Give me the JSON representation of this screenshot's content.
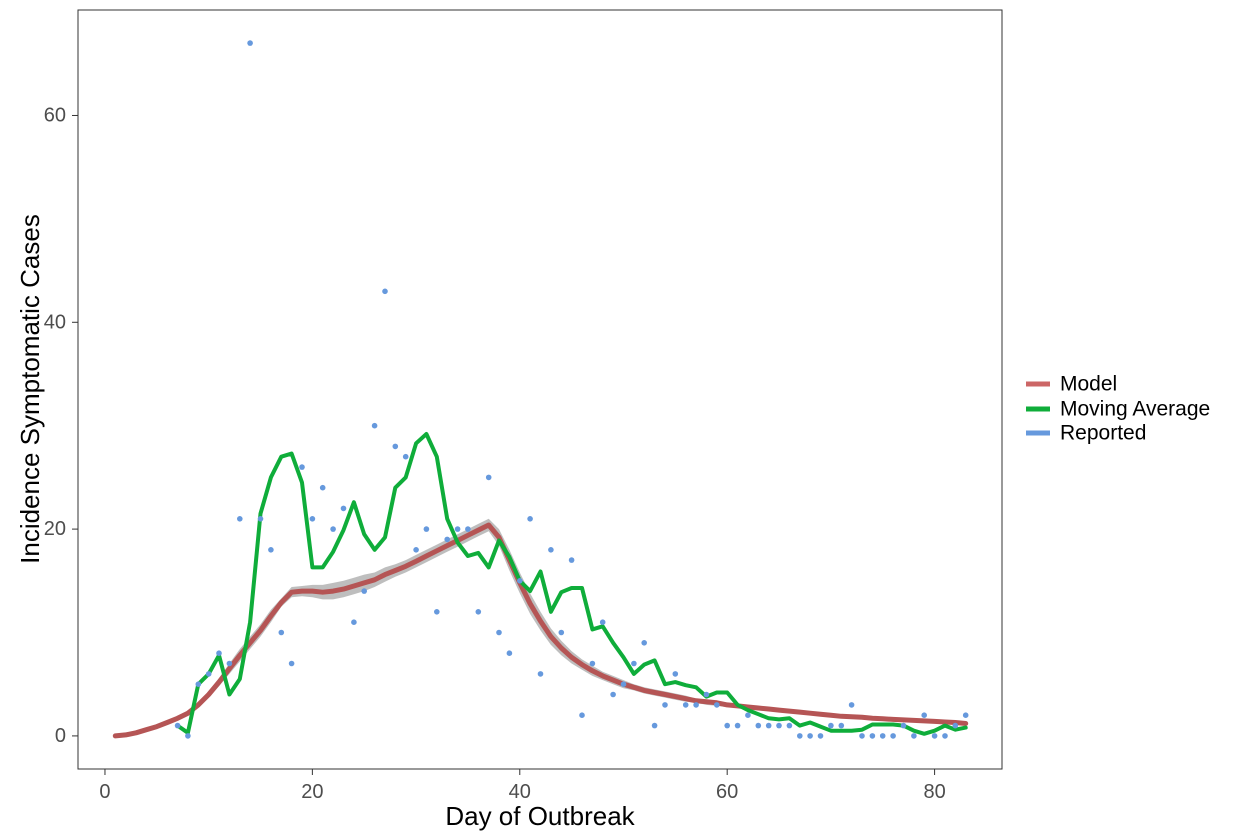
{
  "chart_data": {
    "type": "line",
    "title": "",
    "xlabel": "Day of Outbreak",
    "ylabel": "Incidence Symptomatic Cases",
    "xlim": [
      -2.6,
      86.5
    ],
    "ylim": [
      -3.2,
      70.2
    ],
    "x_ticks": [
      0,
      20,
      40,
      60,
      80
    ],
    "y_ticks": [
      0,
      20,
      40,
      60
    ],
    "x_tick_labels": [
      "0",
      "20",
      "40",
      "60",
      "80"
    ],
    "y_tick_labels": [
      "0",
      "20",
      "40",
      "60"
    ],
    "grid": false,
    "legend_position": "right",
    "legend": [
      {
        "label": "Model",
        "color": "#cc6666"
      },
      {
        "label": "Moving Average",
        "color": "#0fad3a"
      },
      {
        "label": "Reported",
        "color": "#6699dd"
      }
    ],
    "series": [
      {
        "name": "Model",
        "kind": "line",
        "color": "#b55555",
        "x": [
          1,
          2,
          3,
          4,
          5,
          6,
          7,
          8,
          9,
          10,
          11,
          12,
          13,
          14,
          15,
          16,
          17,
          18,
          19,
          20,
          21,
          22,
          23,
          24,
          25,
          26,
          27,
          28,
          29,
          30,
          31,
          32,
          33,
          34,
          35,
          36,
          37,
          38,
          39,
          40,
          41,
          42,
          43,
          44,
          45,
          46,
          47,
          48,
          49,
          50,
          51,
          52,
          53,
          54,
          55,
          56,
          57,
          58,
          59,
          60,
          61,
          62,
          63,
          64,
          65,
          66,
          67,
          68,
          69,
          70,
          71,
          72,
          73,
          74,
          75,
          76,
          77,
          78,
          79,
          80,
          81,
          82,
          83
        ],
        "y": [
          0,
          0.1,
          0.3,
          0.6,
          0.9,
          1.3,
          1.7,
          2.2,
          3.0,
          4.0,
          5.2,
          6.5,
          7.8,
          9.0,
          10.2,
          11.6,
          12.9,
          13.9,
          14.0,
          14.0,
          13.9,
          14.0,
          14.2,
          14.5,
          14.8,
          15.1,
          15.6,
          16.0,
          16.4,
          16.9,
          17.4,
          17.9,
          18.4,
          18.9,
          19.4,
          19.9,
          20.4,
          19.2,
          17.0,
          14.8,
          12.8,
          11.1,
          9.6,
          8.5,
          7.6,
          6.9,
          6.3,
          5.8,
          5.4,
          5.0,
          4.7,
          4.4,
          4.2,
          4.0,
          3.8,
          3.6,
          3.4,
          3.3,
          3.2,
          3.0,
          2.9,
          2.8,
          2.7,
          2.6,
          2.5,
          2.4,
          2.3,
          2.2,
          2.1,
          2.0,
          1.9,
          1.85,
          1.8,
          1.7,
          1.65,
          1.6,
          1.55,
          1.5,
          1.45,
          1.4,
          1.35,
          1.3,
          1.2
        ],
        "ci_lower": [
          0,
          0.1,
          0.3,
          0.5,
          0.8,
          1.1,
          1.5,
          2.0,
          2.8,
          3.7,
          4.8,
          6.0,
          7.2,
          8.4,
          9.6,
          11.0,
          12.5,
          13.4,
          13.5,
          13.4,
          13.2,
          13.2,
          13.4,
          13.7,
          14.0,
          14.4,
          14.9,
          15.4,
          15.8,
          16.3,
          16.8,
          17.3,
          17.8,
          18.3,
          18.8,
          19.3,
          19.8,
          18.4,
          16.0,
          13.8,
          11.8,
          10.2,
          8.8,
          7.8,
          7.0,
          6.4,
          5.8,
          5.4,
          5.0,
          4.6,
          4.4,
          4.1,
          3.9,
          3.7,
          3.5,
          3.3,
          3.2,
          3.0,
          2.9,
          2.8,
          2.7,
          2.6,
          2.5,
          2.4,
          2.3,
          2.2,
          2.1,
          2.0,
          1.9,
          1.8,
          1.75,
          1.7,
          1.6,
          1.55,
          1.5,
          1.45,
          1.4,
          1.35,
          1.3,
          1.25,
          1.2,
          1.15,
          1.1
        ],
        "ci_upper": [
          0,
          0.1,
          0.3,
          0.7,
          1.0,
          1.5,
          1.9,
          2.4,
          3.2,
          4.3,
          5.6,
          7.0,
          8.4,
          9.6,
          10.8,
          12.2,
          13.3,
          14.4,
          14.5,
          14.6,
          14.6,
          14.8,
          15.0,
          15.3,
          15.6,
          15.8,
          16.3,
          16.6,
          17.0,
          17.5,
          18.0,
          18.5,
          19.0,
          19.5,
          20.0,
          20.5,
          21.0,
          20.0,
          18.0,
          15.8,
          13.8,
          12.0,
          10.4,
          9.2,
          8.2,
          7.4,
          6.8,
          6.2,
          5.8,
          5.4,
          5.0,
          4.7,
          4.5,
          4.3,
          4.1,
          3.9,
          3.6,
          3.5,
          3.4,
          3.2,
          3.1,
          3.0,
          2.9,
          2.8,
          2.7,
          2.6,
          2.5,
          2.4,
          2.3,
          2.2,
          2.1,
          2.0,
          1.95,
          1.85,
          1.8,
          1.75,
          1.7,
          1.65,
          1.6,
          1.55,
          1.5,
          1.45,
          1.35
        ]
      },
      {
        "name": "Moving Average",
        "kind": "line",
        "color": "#0fad3a",
        "x": [
          7,
          8,
          9,
          10,
          11,
          12,
          13,
          14,
          15,
          16,
          17,
          18,
          19,
          20,
          21,
          22,
          23,
          24,
          25,
          26,
          27,
          28,
          29,
          30,
          31,
          32,
          33,
          34,
          35,
          36,
          37,
          38,
          39,
          40,
          41,
          42,
          43,
          44,
          45,
          46,
          47,
          48,
          49,
          50,
          51,
          52,
          53,
          54,
          55,
          56,
          57,
          58,
          59,
          60,
          61,
          62,
          63,
          64,
          65,
          66,
          67,
          68,
          69,
          70,
          71,
          72,
          73,
          74,
          75,
          76,
          77,
          78,
          79,
          80,
          81,
          82,
          83
        ],
        "y": [
          1.0,
          0.3,
          5.0,
          6.0,
          7.8,
          4.0,
          5.5,
          11.0,
          21.5,
          25.0,
          27.0,
          27.3,
          24.5,
          16.3,
          16.3,
          17.8,
          19.9,
          22.6,
          19.5,
          18.0,
          19.2,
          24.0,
          25.0,
          28.3,
          29.2,
          27.0,
          21.0,
          18.7,
          17.4,
          17.7,
          16.3,
          18.9,
          17.3,
          15.0,
          14.0,
          15.9,
          12.0,
          13.9,
          14.3,
          14.3,
          10.3,
          10.6,
          9.0,
          7.6,
          6.0,
          6.9,
          7.3,
          5.0,
          5.2,
          4.9,
          4.7,
          3.8,
          4.2,
          4.2,
          3.0,
          2.5,
          2.1,
          1.7,
          1.6,
          1.7,
          1.0,
          1.3,
          0.9,
          0.5,
          0.5,
          0.5,
          0.6,
          1.1,
          1.1,
          1.1,
          1.0,
          0.5,
          0.2,
          0.5,
          1.0,
          0.6,
          0.8
        ]
      },
      {
        "name": "Reported",
        "kind": "scatter",
        "color": "#6699dd",
        "x": [
          7,
          8,
          9,
          10,
          11,
          12,
          13,
          14,
          15,
          16,
          17,
          18,
          19,
          20,
          21,
          22,
          23,
          24,
          25,
          26,
          27,
          28,
          29,
          30,
          31,
          32,
          33,
          34,
          35,
          36,
          37,
          38,
          39,
          40,
          41,
          42,
          43,
          44,
          45,
          46,
          47,
          48,
          49,
          50,
          51,
          52,
          53,
          54,
          55,
          56,
          57,
          58,
          59,
          60,
          61,
          62,
          63,
          64,
          65,
          66,
          67,
          68,
          69,
          70,
          71,
          72,
          73,
          74,
          75,
          76,
          77,
          78,
          79,
          80,
          81,
          82,
          83
        ],
        "y": [
          1,
          0,
          5,
          6,
          8,
          7,
          21,
          67,
          21,
          18,
          10,
          7,
          26,
          21,
          24,
          20,
          22,
          11,
          14,
          30,
          43,
          28,
          27,
          18,
          20,
          12,
          19,
          20,
          20,
          12,
          25,
          10,
          8,
          15,
          21,
          6,
          18,
          10,
          17,
          2,
          7,
          11,
          4,
          5,
          7,
          9,
          1,
          3,
          6,
          3,
          3,
          4,
          3,
          1,
          1,
          2,
          1,
          1,
          1,
          1,
          0,
          0,
          0,
          1,
          1,
          3,
          0,
          0,
          0,
          0,
          1,
          0,
          2,
          0,
          0,
          1,
          2
        ]
      }
    ]
  }
}
